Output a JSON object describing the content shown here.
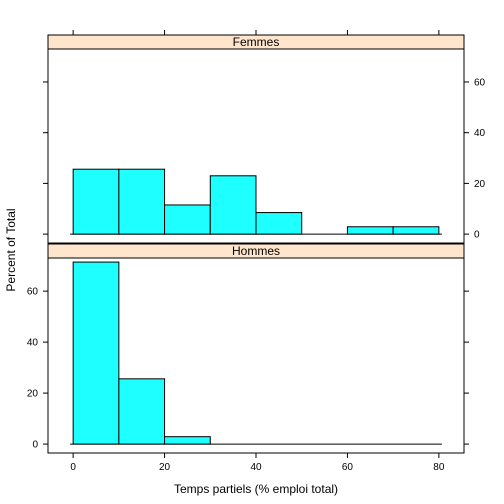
{
  "chart_data": {
    "type": "bar",
    "xlabel": "Temps partiels (% emploi total)",
    "ylabel": "Percent of Total",
    "x_ticks": [
      0,
      20,
      40,
      60,
      80
    ],
    "y_ticks": [
      0,
      20,
      40,
      60
    ],
    "xlim": [
      -5.5,
      85.5
    ],
    "ylim": [
      -3.5,
      73
    ],
    "bin_edges": [
      0,
      10,
      20,
      30,
      40,
      50,
      60,
      70,
      80
    ],
    "colors": {
      "bar_fill": "#1EFFFF",
      "strip_fill": "#FFE5CC",
      "stroke": "#000000"
    },
    "panels": [
      {
        "name": "Femmes",
        "values": [
          25.6,
          25.6,
          11.5,
          23.0,
          8.5,
          0,
          2.9,
          2.9
        ]
      },
      {
        "name": "Hommes",
        "values": [
          71.4,
          25.6,
          2.9,
          0,
          0,
          0,
          0,
          0
        ]
      }
    ]
  }
}
